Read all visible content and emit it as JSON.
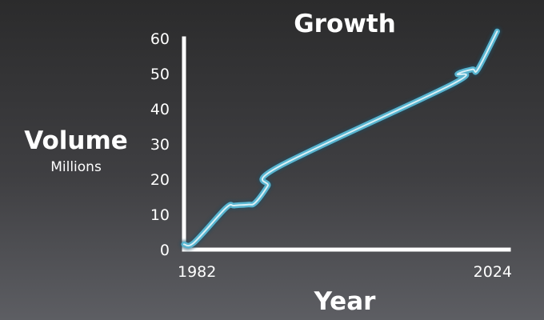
{
  "chart_data": {
    "type": "line",
    "title": "Growth",
    "xlabel": "Year",
    "ylabel": "Volume",
    "ylabel_sub": "Millions",
    "xlim": [
      1982,
      2024
    ],
    "ylim": [
      0,
      60
    ],
    "x_tick_labels": [
      "1982",
      "2024"
    ],
    "y_ticks": [
      0,
      10,
      20,
      30,
      40,
      50,
      60
    ],
    "grid": false,
    "line_color": "#58b4cf",
    "line_core_color": "#e8f6fa",
    "series": [
      {
        "x": [
          1982,
          1983.3,
          1987.4,
          1988.5,
          1990.3,
          1991.2,
          1992.8,
          1994.2,
          2016.7,
          2017.4,
          2019.3,
          2020.0,
          2022.5
        ],
        "y": [
          1.5,
          2.0,
          11.8,
          12.5,
          12.8,
          13.3,
          18.0,
          23.5,
          47.0,
          49.9,
          51.2,
          51.2,
          62.0
        ]
      }
    ]
  }
}
